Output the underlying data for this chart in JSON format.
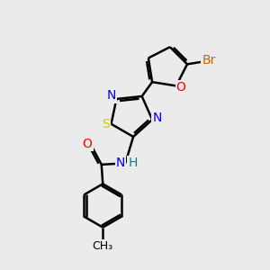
{
  "background_color": "#ebebeb",
  "bond_color": "#000000",
  "bond_width": 1.8,
  "atom_colors": {
    "Br": "#cc6600",
    "O": "#ff0000",
    "N": "#0000ff",
    "S": "#cccc00",
    "C": "#000000",
    "H": "#008888"
  },
  "font_size": 10,
  "bold_font": false
}
